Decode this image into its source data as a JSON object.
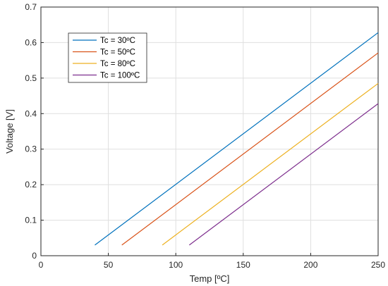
{
  "chart_data": {
    "type": "line",
    "title": "",
    "xlabel": "Temp [ºC]",
    "ylabel": "Voltage [V]",
    "xlim": [
      0,
      250
    ],
    "ylim": [
      0,
      0.7
    ],
    "xticks": [
      0,
      50,
      100,
      150,
      200,
      250
    ],
    "yticks": [
      0,
      0.1,
      0.2,
      0.3,
      0.4,
      0.5,
      0.6,
      0.7
    ],
    "grid": true,
    "legend_position": "top-left",
    "series": [
      {
        "name": "Tc = 30ºC",
        "color": "#0072BD",
        "x": [
          40,
          250
        ],
        "y": [
          0.03,
          0.628
        ]
      },
      {
        "name": "Tc = 50ºC",
        "color": "#D95319",
        "x": [
          60,
          250
        ],
        "y": [
          0.03,
          0.571
        ]
      },
      {
        "name": "Tc = 80ºC",
        "color": "#EDB120",
        "x": [
          90,
          250
        ],
        "y": [
          0.03,
          0.485
        ]
      },
      {
        "name": "Tc = 100ºC",
        "color": "#7E2F8E",
        "x": [
          110,
          250
        ],
        "y": [
          0.03,
          0.428
        ]
      }
    ]
  }
}
